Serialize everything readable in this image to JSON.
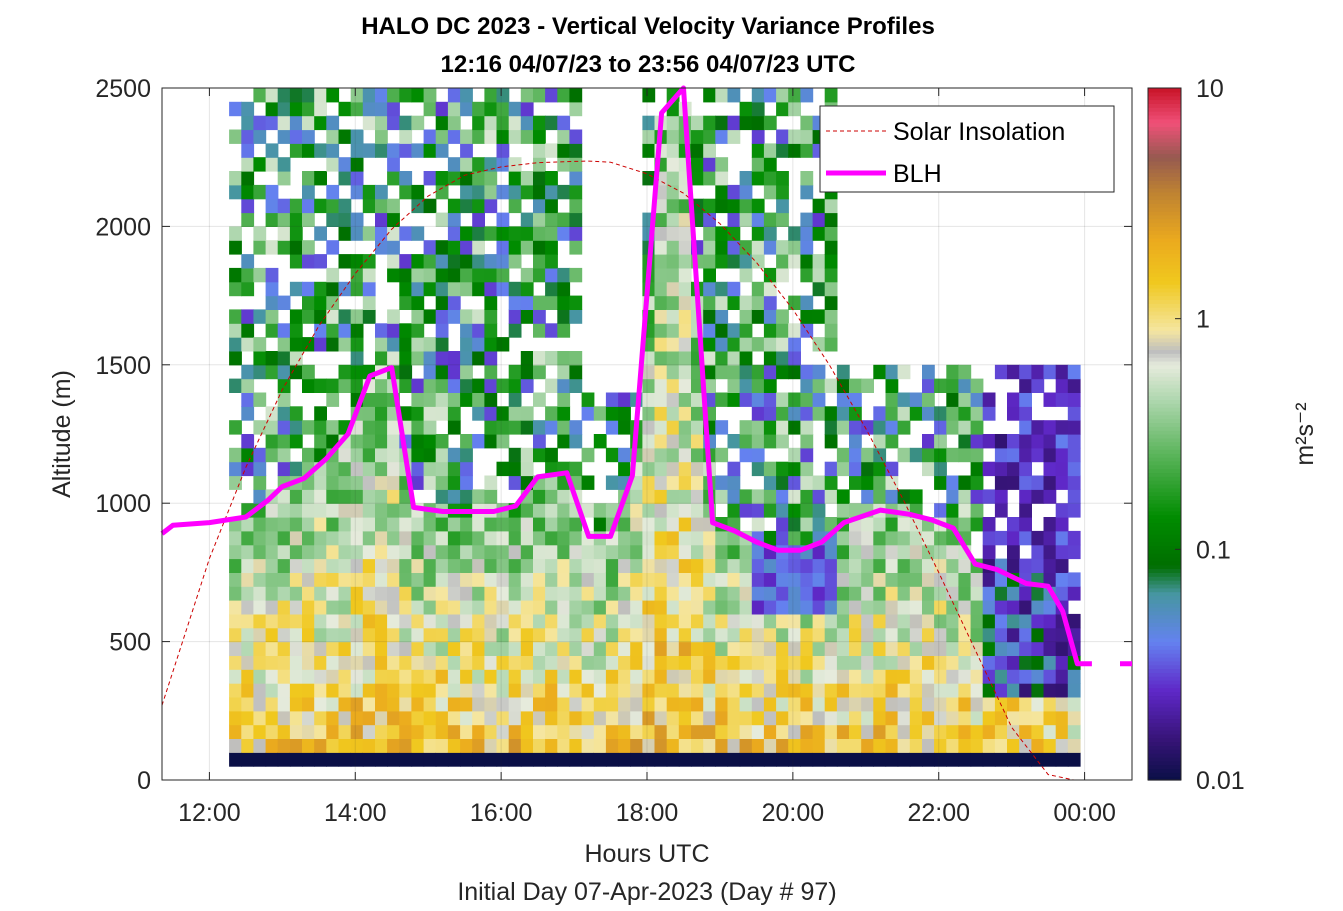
{
  "title_line1": "HALO DC 2023 - Vertical Velocity Variance Profiles",
  "title_line2": "12:16 04/07/23 to 23:56 04/07/23  UTC",
  "xlabel": "Hours UTC",
  "xlabel2": "Initial Day 07-Apr-2023 (Day # 97)",
  "ylabel": "Altitude (m)",
  "colorbar_label": "m²s⁻²",
  "legend": {
    "solar_label": "Solar Insolation",
    "blh_label": "BLH",
    "solar_color": "#cc0000",
    "blh_color": "#ff00ff"
  },
  "chart_data": {
    "type": "heatmap",
    "x_axis": {
      "range_hours": [
        11.35,
        24.65
      ],
      "ticks": [
        12,
        14,
        16,
        18,
        20,
        22,
        24
      ],
      "tick_labels": [
        "12:00",
        "14:00",
        "16:00",
        "18:00",
        "20:00",
        "22:00",
        "00:00"
      ]
    },
    "y_axis": {
      "range": [
        0,
        2500
      ],
      "ticks": [
        0,
        500,
        1000,
        1500,
        2000,
        2500
      ],
      "tick_labels": [
        "0",
        "500",
        "1000",
        "1500",
        "2000",
        "2500"
      ]
    },
    "colorbar": {
      "scale": "log",
      "range": [
        0.01,
        10
      ],
      "ticks": [
        0.01,
        0.1,
        1,
        10
      ],
      "tick_labels": [
        "0.01",
        "0.1",
        "1",
        "10"
      ]
    },
    "heatmap": {
      "time_start": 12.27,
      "time_end": 23.93,
      "altitude_start": 0,
      "altitude_end": 2500,
      "altitude_step": 50,
      "value_description": "vertical velocity variance (m^2 s^-2), log colour scale 0.01–10"
    },
    "series": [
      {
        "name": "Solar Insolation",
        "style": "dashed",
        "x": [
          11.35,
          12,
          12.5,
          13,
          13.5,
          14,
          14.5,
          15,
          15.5,
          16,
          16.5,
          17,
          17.2,
          17.5,
          18,
          18.5,
          19,
          19.5,
          20,
          20.5,
          21,
          21.5,
          22,
          22.5,
          23,
          23.5,
          23.85,
          24.65
        ],
        "y": [
          270,
          800,
          1130,
          1410,
          1640,
          1830,
          1990,
          2110,
          2185,
          2215,
          2230,
          2235,
          2236,
          2232,
          2190,
          2120,
          2010,
          1870,
          1700,
          1500,
          1270,
          1020,
          750,
          470,
          190,
          20,
          0,
          0
        ]
      },
      {
        "name": "BLH",
        "style": "solid",
        "x": [
          11.35,
          11.5,
          12,
          12.5,
          12.8,
          13,
          13.3,
          13.6,
          13.9,
          14.2,
          14.5,
          14.8,
          15.2,
          15.6,
          15.9,
          16.2,
          16.5,
          16.9,
          17.2,
          17.5,
          17.8,
          18.2,
          18.5,
          18.9,
          19.2,
          19.5,
          19.8,
          20.1,
          20.4,
          20.7,
          21.2,
          21.6,
          21.9,
          22.2,
          22.5,
          22.8,
          23.2,
          23.5,
          23.7,
          23.9,
          24.1
        ],
        "y": [
          890,
          920,
          930,
          950,
          1010,
          1060,
          1090,
          1160,
          1250,
          1460,
          1490,
          985,
          970,
          970,
          970,
          990,
          1095,
          1110,
          880,
          880,
          1100,
          2410,
          2500,
          930,
          900,
          860,
          830,
          830,
          860,
          930,
          975,
          960,
          940,
          910,
          780,
          760,
          710,
          700,
          610,
          420,
          420
        ]
      }
    ]
  }
}
